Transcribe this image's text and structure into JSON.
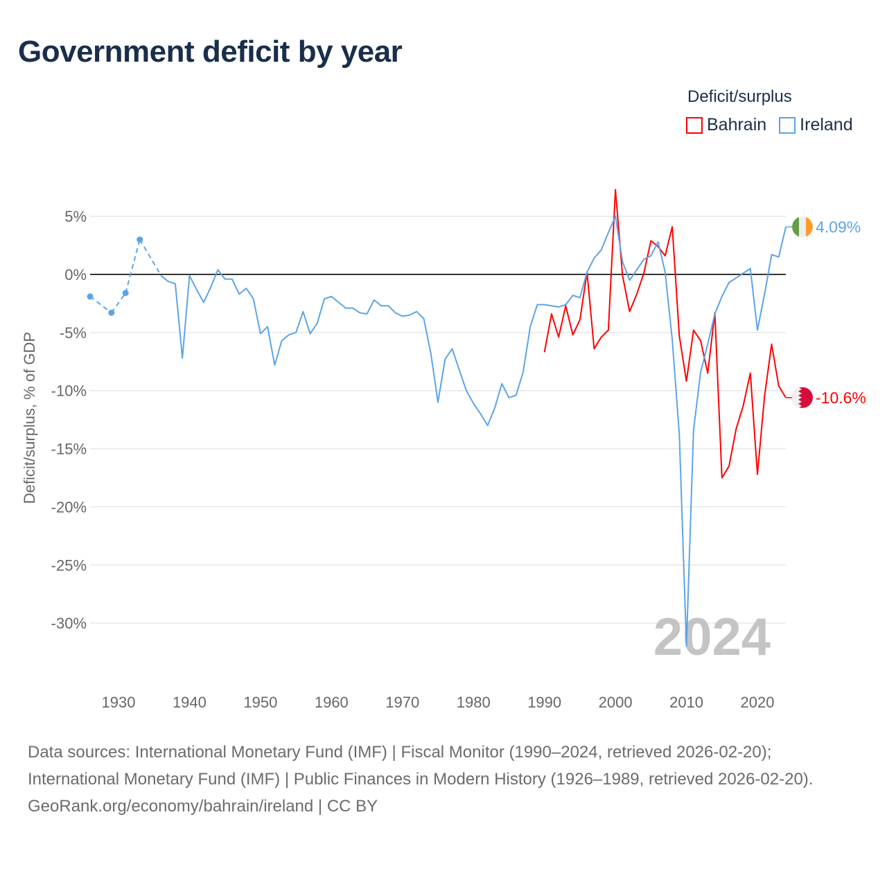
{
  "title": "Government deficit by year",
  "legend": {
    "title": "Deficit/surplus",
    "items": [
      {
        "name": "Bahrain",
        "color": "#ff0000"
      },
      {
        "name": "Ireland",
        "color": "#5ba4e8"
      }
    ]
  },
  "chart_data": {
    "type": "line",
    "title": "Government deficit by year",
    "xlabel": "",
    "ylabel": "Deficit/surplus, % of GDP",
    "xlim": [
      1926,
      2024
    ],
    "ylim": [
      -34,
      8
    ],
    "x_ticks": [
      1930,
      1940,
      1950,
      1960,
      1970,
      1980,
      1990,
      2000,
      2010,
      2020
    ],
    "y_ticks": [
      5,
      0,
      -5,
      -10,
      -15,
      -20,
      -25,
      -30
    ],
    "y_tick_labels": [
      "5%",
      "0%",
      "-5%",
      "-10%",
      "-15%",
      "-20%",
      "-25%",
      "-30%"
    ],
    "current_year_label": "2024",
    "series": [
      {
        "name": "Bahrain",
        "color": "#ff0000",
        "end_label": "-10.6%",
        "start_year": 1990,
        "values": [
          -6.7,
          -3.4,
          -5.4,
          -2.7,
          -5.2,
          -3.9,
          0.2,
          -6.4,
          -5.4,
          -4.8,
          7.3,
          -0.1,
          -3.2,
          -1.7,
          0.1,
          2.9,
          2.4,
          1.6,
          4.1,
          -5.3,
          -9.2,
          -4.8,
          -5.7,
          -8.5,
          -3.3,
          -17.5,
          -16.5,
          -13.3,
          -11.3,
          -8.5,
          -17.2,
          -10.5,
          -6.0,
          -9.6,
          -10.6
        ]
      },
      {
        "name": "Ireland",
        "color": "#5ba4e8",
        "end_label": "4.09%",
        "start_year": 1926,
        "values": [
          -1.9,
          null,
          null,
          -3.3,
          null,
          -1.6,
          null,
          3.0,
          null,
          null,
          -0.1,
          -0.6,
          -0.8,
          -7.2,
          -0.1,
          -1.3,
          -2.4,
          -1.1,
          0.4,
          -0.4,
          -0.4,
          -1.7,
          -1.2,
          -2.1,
          -5.1,
          -4.5,
          -7.8,
          -5.7,
          -5.2,
          -5.0,
          -3.2,
          -5.1,
          -4.2,
          -2.1,
          -1.9,
          -2.4,
          -2.9,
          -2.9,
          -3.3,
          -3.4,
          -2.2,
          -2.7,
          -2.7,
          -3.3,
          -3.6,
          -3.5,
          -3.2,
          -3.8,
          -6.8,
          -11.0,
          -7.3,
          -6.4,
          -8.2,
          -10.0,
          -11.1,
          -12.0,
          -13.0,
          -11.5,
          -9.4,
          -10.6,
          -10.4,
          -8.4,
          -4.5,
          -2.6,
          -2.6,
          -2.7,
          -2.8,
          -2.6,
          -1.8,
          -2.0,
          0.2,
          1.4,
          2.1,
          3.6,
          5.0,
          1.1,
          -0.5,
          0.4,
          1.3,
          1.6,
          2.8,
          0.2,
          -5.6,
          -13.8,
          -32.0,
          -13.4,
          -8.4,
          -6.0,
          -3.4,
          -1.9,
          -0.7,
          -0.3,
          0.1,
          0.5,
          -4.8,
          -1.7,
          1.7,
          1.5,
          4.09
        ]
      }
    ]
  },
  "footer": {
    "sources": "Data sources: International Monetary Fund (IMF) | Fiscal Monitor (1990–2024, retrieved 2026-02-20); International Monetary Fund (IMF) | Public Finances in Modern History (1926–1989, retrieved 2026-02-20).",
    "attribution": "GeoRank.org/economy/bahrain/ireland | CC BY"
  }
}
